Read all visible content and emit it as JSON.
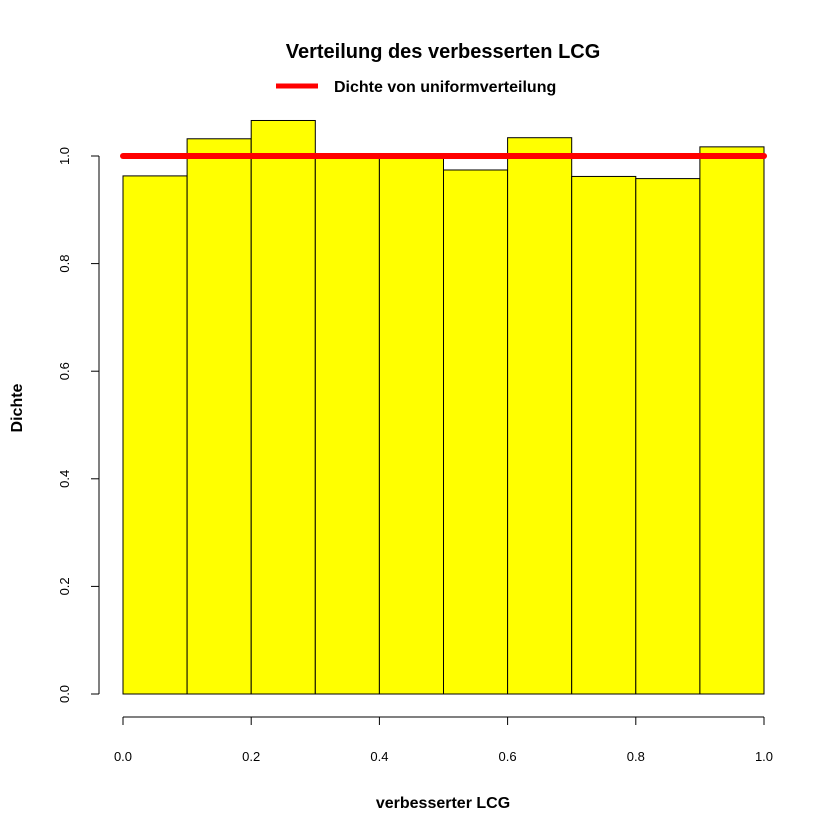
{
  "chart_data": {
    "type": "bar",
    "title": "Verteilung des verbesserten LCG",
    "xlabel": "verbesserter LCG",
    "ylabel": "Dichte",
    "bin_edges": [
      0.0,
      0.1,
      0.2,
      0.3,
      0.4,
      0.5,
      0.6,
      0.7,
      0.8,
      0.9,
      1.0
    ],
    "values": [
      0.963,
      1.032,
      1.066,
      1.0,
      1.0,
      0.974,
      1.034,
      0.962,
      0.958,
      1.017
    ],
    "xlim": [
      0.0,
      1.0
    ],
    "ylim": [
      0.0,
      1.0
    ],
    "x_ticks": [
      "0.0",
      "0.2",
      "0.4",
      "0.6",
      "0.8",
      "1.0"
    ],
    "y_ticks": [
      "0.0",
      "0.2",
      "0.4",
      "0.6",
      "0.8",
      "1.0"
    ],
    "bar_color": "#ffff00",
    "bar_border_color": "#000000",
    "reference_line": {
      "name": "Dichte von uniformverteilung",
      "y": 1.0,
      "x": [
        0.0,
        1.0
      ],
      "color": "#ff0000"
    },
    "legend": {
      "position": "top",
      "entries": [
        "Dichte von uniformverteilung"
      ]
    },
    "grid": false
  }
}
